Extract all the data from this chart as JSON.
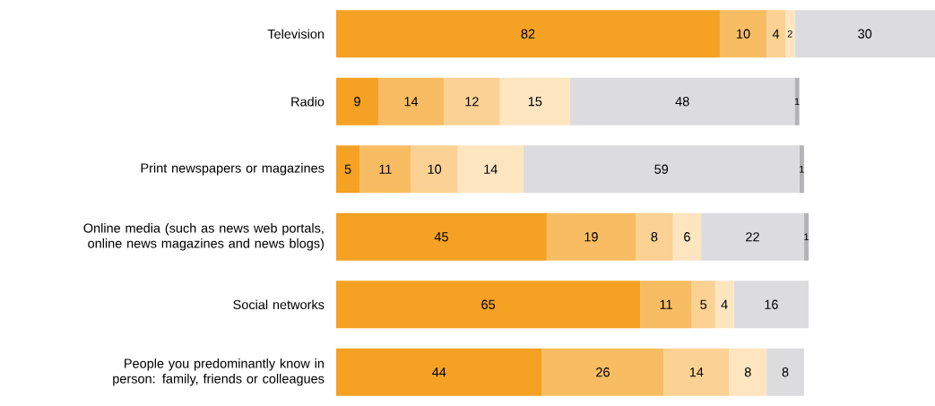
{
  "chart_data": {
    "type": "bar",
    "orientation": "horizontal",
    "stacked": true,
    "data_labels": true,
    "categories": [
      "Television",
      "Radio",
      "Print newspapers or magazines",
      "Online media (such as news web portals, online news magazines and news blogs)",
      "Social networks",
      "People you predominantly know in person: family, friends or colleagues"
    ],
    "series": [
      {
        "color": "#f5a123",
        "values": [
          82,
          9,
          5,
          45,
          65,
          44
        ]
      },
      {
        "color": "#f8bd62",
        "values": [
          10,
          14,
          11,
          19,
          11,
          26
        ]
      },
      {
        "color": "#fbd293",
        "values": [
          4,
          12,
          10,
          8,
          5,
          14
        ]
      },
      {
        "color": "#fde5c0",
        "values": [
          2,
          15,
          14,
          6,
          4,
          8
        ]
      },
      {
        "color": "#dcdcde",
        "values": [
          30,
          48,
          59,
          22,
          16,
          8
        ]
      },
      {
        "color": "#b4b4b6",
        "values": [
          null,
          1,
          1,
          1,
          null,
          null
        ]
      }
    ]
  }
}
